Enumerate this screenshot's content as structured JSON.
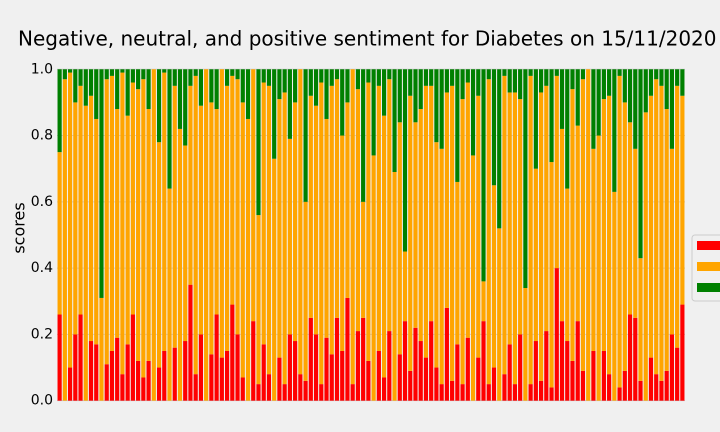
{
  "chart_data": {
    "type": "stacked_bar",
    "title": "Negative, neutral, and positive sentiment for Diabetes on 15/11/2020",
    "ylabel": "scores",
    "categories": [
      null,
      null,
      null,
      null,
      null,
      null,
      null,
      null,
      null,
      null,
      null,
      null,
      null,
      null,
      null,
      null,
      null,
      null,
      null,
      null,
      null,
      null,
      null,
      null,
      null,
      null,
      null,
      null,
      null,
      null,
      null,
      null,
      null,
      null,
      null,
      null,
      null,
      null,
      null,
      null,
      null,
      null,
      null,
      null,
      null,
      null,
      null,
      null,
      null,
      null,
      null,
      null,
      null,
      null,
      null,
      null,
      null,
      null,
      null,
      null,
      null,
      null,
      null,
      null,
      null,
      null,
      null,
      null,
      null,
      null,
      null,
      null,
      null,
      null,
      null,
      null,
      null,
      null,
      null,
      null,
      null,
      null,
      null,
      null,
      null,
      null,
      null,
      null,
      null,
      null,
      null,
      null,
      null,
      null,
      null,
      null,
      null,
      null,
      null,
      null,
      null,
      null,
      null,
      null,
      null,
      null,
      null,
      null,
      null,
      null,
      null,
      null,
      null,
      null,
      null,
      null,
      null,
      null,
      null,
      null
    ],
    "series": [
      {
        "color": "#ff0000",
        "values": [
          0.26,
          0,
          0.1,
          0.2,
          0.26,
          0,
          0.18,
          0.17,
          0,
          0.11,
          0.15,
          0.19,
          0.08,
          0.17,
          0.26,
          0.12,
          0.07,
          0.12,
          0,
          0.1,
          0.15,
          0,
          0.16,
          0,
          0.18,
          0.35,
          0.08,
          0.2,
          0,
          0.14,
          0.26,
          0.13,
          0.15,
          0.29,
          0.2,
          0.07,
          0,
          0.24,
          0.05,
          0.17,
          0.08,
          0,
          0.13,
          0.05,
          0.2,
          0.18,
          0.08,
          0.06,
          0.25,
          0.2,
          0.05,
          0.19,
          0.14,
          0.25,
          0.15,
          0.31,
          0.05,
          0.21,
          0.25,
          0.12,
          0,
          0.15,
          0.07,
          0.21,
          0,
          0.14,
          0.24,
          0.09,
          0.22,
          0.18,
          0.13,
          0.24,
          0.1,
          0.05,
          0.28,
          0.06,
          0.17,
          0.05,
          0.19,
          0,
          0.13,
          0.24,
          0.05,
          0.1,
          0,
          0.08,
          0.17,
          0.05,
          0.2,
          0,
          0.05,
          0.18,
          0.06,
          0.21,
          0.04,
          0.4,
          0.24,
          0.18,
          0.12,
          0.24,
          0.09,
          0,
          0.15,
          0,
          0.15,
          0.08,
          0,
          0.04,
          0.09,
          0.26,
          0.25,
          0.06,
          0,
          0.13,
          0.08,
          0.06,
          0.09,
          0.2,
          0.16,
          0.29
        ]
      },
      {
        "color": "#ffa500",
        "values": [
          0.49,
          0.97,
          0.89,
          0.7,
          0.69,
          0.89,
          0.74,
          0.68,
          0.31,
          0.86,
          0.83,
          0.69,
          0.91,
          0.69,
          0.7,
          0.82,
          0.9,
          0.76,
          1,
          0.68,
          0.84,
          0.64,
          0.79,
          0.82,
          0.59,
          0.6,
          0.9,
          0.69,
          1,
          0.76,
          0.62,
          0.87,
          0.8,
          0.69,
          0.77,
          0.83,
          0.85,
          0.76,
          0.51,
          0.79,
          0.87,
          0.73,
          0.78,
          0.88,
          0.59,
          0.72,
          0.92,
          0.54,
          0.67,
          0.69,
          0.91,
          0.66,
          0.81,
          0.72,
          0.65,
          0.59,
          0.95,
          0.73,
          0.35,
          0.84,
          0.74,
          0.8,
          0.79,
          0.76,
          0.69,
          0.7,
          0.21,
          0.83,
          0.62,
          0.7,
          0.82,
          0.71,
          0.68,
          0.71,
          0.65,
          0.89,
          0.49,
          0.86,
          0.77,
          0.74,
          0.79,
          0.12,
          0.92,
          0.55,
          0.52,
          0.9,
          0.76,
          0.88,
          0.71,
          0.34,
          0.93,
          0.52,
          0.87,
          0.74,
          0.68,
          0.58,
          0.58,
          0.46,
          0.82,
          0.59,
          0.88,
          1,
          0.61,
          0.8,
          0.76,
          0.84,
          0.63,
          0.94,
          0.81,
          0.58,
          0.51,
          0.37,
          0.87,
          0.79,
          0.89,
          0.89,
          0.79,
          0.56,
          0.79,
          0.63
        ]
      },
      {
        "color": "#008000",
        "values": [
          0.25,
          0.03,
          0.01,
          0.1,
          0.05,
          0.11,
          0.08,
          0.15,
          0.69,
          0.03,
          0.02,
          0.12,
          0.01,
          0.14,
          0.04,
          0.06,
          0.03,
          0.12,
          0,
          0.22,
          0.01,
          0.36,
          0.05,
          0.18,
          0.23,
          0.05,
          0.02,
          0.11,
          0,
          0.1,
          0.12,
          0,
          0.05,
          0.02,
          0.03,
          0.1,
          0.15,
          0,
          0.44,
          0.04,
          0.05,
          0.27,
          0.09,
          0.07,
          0.21,
          0.1,
          0,
          0.4,
          0.08,
          0.11,
          0.04,
          0.15,
          0.05,
          0.03,
          0.2,
          0.1,
          0,
          0.06,
          0.4,
          0.04,
          0.26,
          0.05,
          0.14,
          0.03,
          0.31,
          0.16,
          0.55,
          0.08,
          0.16,
          0.12,
          0.05,
          0.05,
          0.22,
          0.24,
          0.07,
          0.05,
          0.34,
          0.09,
          0.04,
          0.26,
          0.08,
          0.64,
          0.03,
          0.35,
          0.48,
          0.02,
          0.07,
          0.07,
          0.09,
          0.66,
          0.02,
          0.3,
          0.07,
          0.05,
          0.28,
          0.02,
          0.18,
          0.36,
          0.06,
          0.17,
          0.03,
          0,
          0.24,
          0.2,
          0.09,
          0.08,
          0.37,
          0.02,
          0.1,
          0.16,
          0.24,
          0.57,
          0.13,
          0.08,
          0.03,
          0.05,
          0.12,
          0.24,
          0.05,
          0.08
        ]
      }
    ],
    "ylim": [
      -0.01,
      1.04
    ],
    "yticks": [
      {
        "value": 0.0,
        "label": "0.0"
      },
      0.2,
      0.4,
      0.6,
      0.8,
      {
        "value": 1.0,
        "label": "1.0"
      }
    ],
    "grid": true
  }
}
